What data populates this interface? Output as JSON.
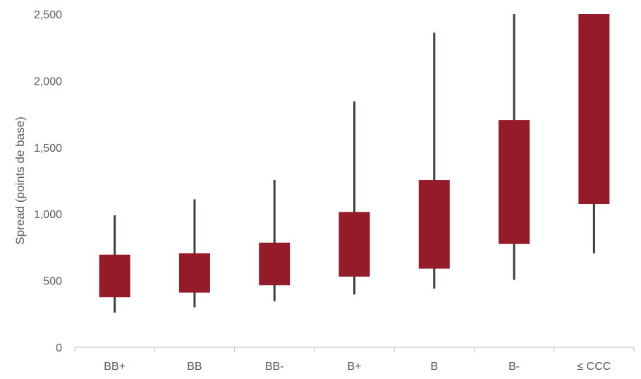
{
  "chart_data": {
    "type": "box",
    "title": "",
    "xlabel": "",
    "ylabel": "Spread (points de base)",
    "ylim": [
      0,
      2500
    ],
    "yticks": [
      0,
      500,
      1000,
      1500,
      2000,
      2500
    ],
    "ytick_labels": [
      "0",
      "500",
      "1,000",
      "1,500",
      "2,000",
      "2,500"
    ],
    "grid": false,
    "legend": "none",
    "colors": {
      "box": "#951B29",
      "whisker": "#3A3F44",
      "axis": "#BFBFBF",
      "text": "#595959"
    },
    "categories": [
      "BB+",
      "BB",
      "BB-",
      "B+",
      "B",
      "B-",
      "≤ CCC"
    ],
    "boxes": [
      {
        "category": "BB+",
        "min": 260,
        "q1": 375,
        "q3": 695,
        "max": 990
      },
      {
        "category": "BB",
        "min": 300,
        "q1": 410,
        "q3": 705,
        "max": 1110
      },
      {
        "category": "BB-",
        "min": 345,
        "q1": 465,
        "q3": 785,
        "max": 1255
      },
      {
        "category": "B+",
        "min": 395,
        "q1": 530,
        "q3": 1015,
        "max": 1845
      },
      {
        "category": "B",
        "min": 440,
        "q1": 590,
        "q3": 1255,
        "max": 2360
      },
      {
        "category": "B-",
        "min": 505,
        "q1": 775,
        "q3": 1705,
        "max": 2500
      },
      {
        "category": "≤ CCC",
        "min": 705,
        "q1": 1075,
        "q3": 2500,
        "max": 2500
      }
    ]
  }
}
